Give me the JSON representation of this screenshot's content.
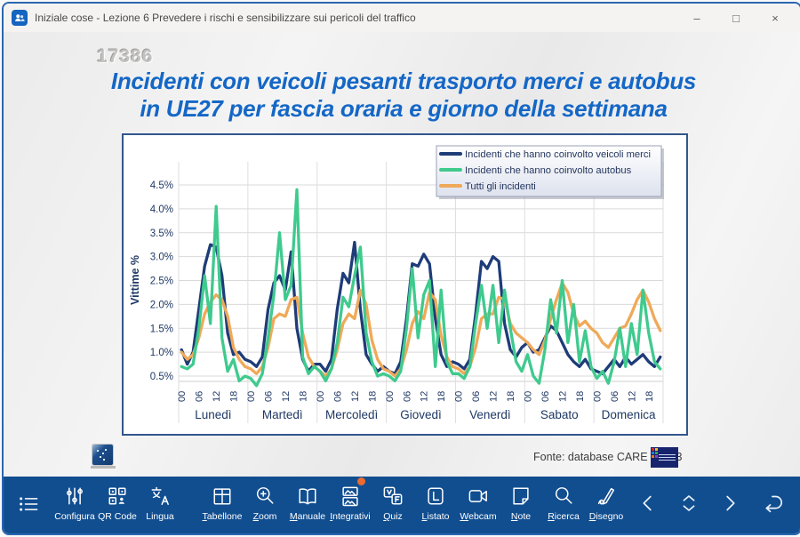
{
  "window": {
    "title": "Iniziale cose - Lezione 6 Prevedere i rischi e sensibilizzare sui pericoli del traffico",
    "controls": [
      {
        "id": "minimize",
        "glyph": "–"
      },
      {
        "id": "maximize",
        "glyph": "□"
      },
      {
        "id": "close",
        "glyph": "×"
      }
    ]
  },
  "slide": {
    "number": "17386",
    "title_line1": "Incidenti con veicoli pesanti trasporto merci e autobus",
    "title_line2": "in UE27 per fascia oraria e giorno della settimana",
    "source": "Fonte: database CARE - 2023"
  },
  "chart_data": {
    "type": "line",
    "title": "Incidenti con veicoli pesanti trasporto merci e autobus in UE27 per fascia oraria e giorno della settimana",
    "ylabel": "Vittime %",
    "y_ticks": [
      0.5,
      1.0,
      1.5,
      2.0,
      2.5,
      3.0,
      3.5,
      4.0,
      4.5
    ],
    "y_tick_suffix": "%",
    "ylim": [
      0.3,
      5.0
    ],
    "grid": true,
    "legend_position": "top-right",
    "days": [
      "Lunedì",
      "Martedì",
      "Mercoledì",
      "Giovedì",
      "Venerdì",
      "Sabato",
      "Domenica"
    ],
    "hour_ticks": [
      "00",
      "06",
      "12",
      "18"
    ],
    "hours_per_point": 2,
    "axis_color": "#1f3864",
    "series": [
      {
        "name": "Incidenti che hanno coinvolto veicoli merci",
        "color": "#1e3c78",
        "values": [
          1.05,
          0.75,
          1.0,
          1.9,
          2.8,
          3.25,
          3.2,
          2.6,
          1.4,
          0.95,
          1.0,
          0.85,
          0.8,
          0.7,
          0.9,
          1.9,
          2.45,
          2.6,
          2.3,
          3.1,
          1.5,
          0.85,
          0.6,
          0.75,
          0.75,
          0.6,
          0.85,
          1.9,
          2.65,
          2.45,
          3.3,
          1.9,
          0.95,
          0.75,
          0.6,
          0.7,
          0.6,
          0.55,
          0.8,
          1.7,
          2.85,
          2.8,
          3.05,
          2.85,
          1.7,
          0.95,
          0.7,
          0.8,
          0.75,
          0.65,
          0.85,
          1.8,
          2.9,
          2.75,
          3.0,
          2.9,
          1.6,
          1.05,
          0.9,
          1.1,
          1.2,
          1.0,
          1.05,
          1.3,
          1.55,
          1.45,
          1.2,
          0.95,
          0.8,
          0.7,
          0.85,
          0.65,
          0.6,
          0.55,
          0.7,
          0.85,
          0.7,
          0.9,
          0.75,
          0.85,
          0.95,
          0.8,
          0.7,
          0.9
        ]
      },
      {
        "name": "Incidenti che hanno coinvolto autobus",
        "color": "#3fca8e",
        "values": [
          0.7,
          0.65,
          0.75,
          1.5,
          2.6,
          1.6,
          4.05,
          1.3,
          0.6,
          0.85,
          0.4,
          0.5,
          0.45,
          0.3,
          0.55,
          1.3,
          2.2,
          3.5,
          2.1,
          2.4,
          4.4,
          0.9,
          0.55,
          0.7,
          0.6,
          0.4,
          0.65,
          1.2,
          2.15,
          1.95,
          2.6,
          3.2,
          1.4,
          0.8,
          0.5,
          0.55,
          0.5,
          0.4,
          0.6,
          1.5,
          2.75,
          1.3,
          2.2,
          2.5,
          0.7,
          2.3,
          0.8,
          0.55,
          0.55,
          0.45,
          0.7,
          1.6,
          2.4,
          1.5,
          2.4,
          1.2,
          2.3,
          1.5,
          0.8,
          0.6,
          0.95,
          0.5,
          0.35,
          1.05,
          2.1,
          1.4,
          2.5,
          1.2,
          2.0,
          0.8,
          1.45,
          0.7,
          0.45,
          0.6,
          0.35,
          0.8,
          1.5,
          0.7,
          1.6,
          0.95,
          2.3,
          1.4,
          0.8,
          0.65
        ]
      },
      {
        "name": "Tutti gli incidenti",
        "color": "#efa959",
        "values": [
          1.0,
          0.85,
          0.95,
          1.3,
          1.8,
          2.05,
          2.2,
          2.1,
          1.75,
          1.1,
          0.85,
          0.7,
          0.65,
          0.55,
          0.7,
          1.1,
          1.7,
          1.8,
          1.75,
          2.1,
          2.15,
          1.4,
          0.9,
          0.7,
          0.6,
          0.5,
          0.65,
          1.05,
          1.6,
          1.8,
          1.7,
          2.3,
          2.0,
          1.25,
          0.85,
          0.65,
          0.6,
          0.5,
          0.65,
          1.05,
          1.6,
          1.85,
          1.7,
          2.25,
          2.1,
          1.35,
          0.9,
          0.7,
          0.65,
          0.55,
          0.7,
          1.1,
          1.7,
          1.8,
          1.8,
          2.15,
          2.1,
          1.6,
          1.4,
          1.3,
          1.2,
          1.05,
          0.95,
          1.25,
          1.7,
          2.1,
          2.45,
          2.25,
          1.8,
          1.55,
          1.65,
          1.5,
          1.4,
          1.2,
          1.1,
          1.3,
          1.5,
          1.55,
          1.8,
          2.1,
          2.3,
          2.05,
          1.7,
          1.45
        ]
      }
    ]
  },
  "toolbar": {
    "badge_color": "#ed6b2f",
    "items": [
      {
        "id": "menu",
        "icon": "menu-list",
        "label": "",
        "shortcut": false
      },
      {
        "id": "configura",
        "icon": "sliders",
        "label": "Configura",
        "shortcut": false
      },
      {
        "id": "qr-code",
        "icon": "qr-code",
        "label": "QR Code",
        "shortcut": false
      },
      {
        "id": "lingua",
        "icon": "translate",
        "label": "Lingua",
        "shortcut": false
      },
      {
        "id": "tabellone",
        "icon": "grid",
        "label": "Tabellone",
        "shortcut": true
      },
      {
        "id": "zoom",
        "icon": "zoom-in",
        "label": "Zoom",
        "shortcut": true
      },
      {
        "id": "manuale",
        "icon": "book-open",
        "label": "Manuale",
        "shortcut": true
      },
      {
        "id": "integrativi",
        "icon": "images",
        "label": "Integrativi",
        "shortcut": true,
        "badge": true
      },
      {
        "id": "quiz",
        "icon": "quiz-vf",
        "label": "Quiz",
        "shortcut": true
      },
      {
        "id": "listato",
        "icon": "list-l",
        "label": "Listato",
        "shortcut": true
      },
      {
        "id": "webcam",
        "icon": "webcam",
        "label": "Webcam",
        "shortcut": true
      },
      {
        "id": "note",
        "icon": "note",
        "label": "Note",
        "shortcut": true
      },
      {
        "id": "ricerca",
        "icon": "search",
        "label": "Ricerca",
        "shortcut": true
      },
      {
        "id": "disegno",
        "icon": "pen",
        "label": "Disegno",
        "shortcut": true
      }
    ],
    "nav": [
      {
        "id": "previous",
        "icon": "chevron-left"
      },
      {
        "id": "jump",
        "icon": "chevrons-vertical"
      },
      {
        "id": "next",
        "icon": "chevron-right"
      },
      {
        "id": "return",
        "icon": "return-arrow"
      }
    ]
  }
}
